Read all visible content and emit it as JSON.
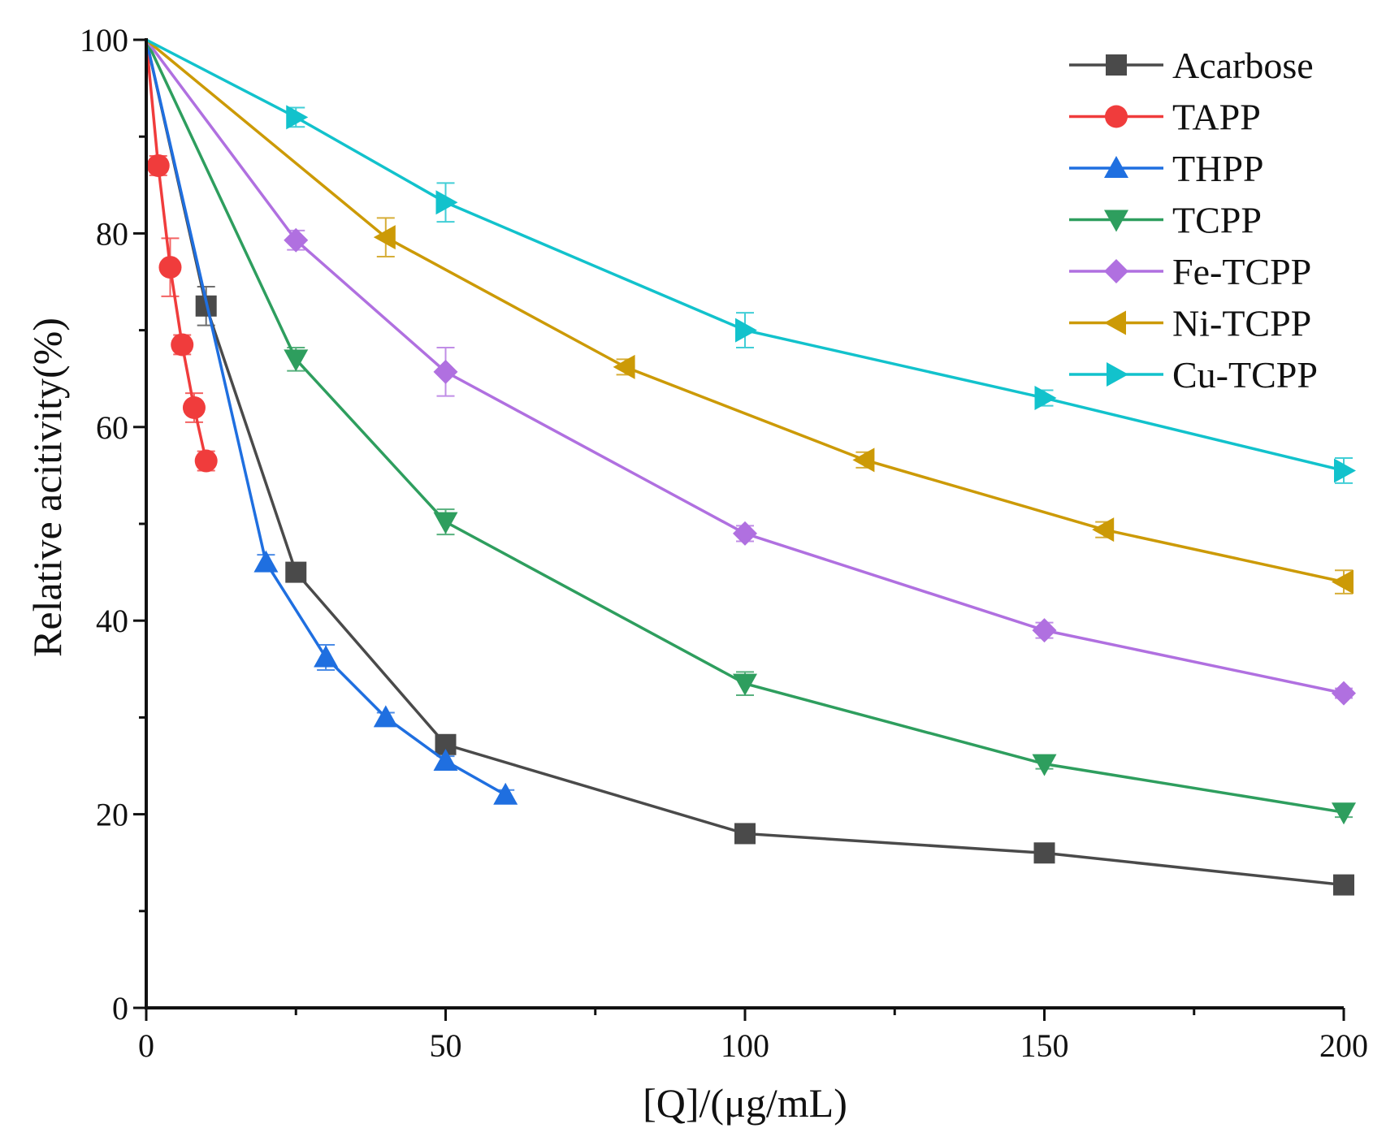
{
  "chart_data": {
    "type": "line",
    "title": "",
    "xlabel": "[Q]/(μg/mL)",
    "ylabel": "Relative acitivity(%)",
    "xlim": [
      0,
      200
    ],
    "ylim": [
      0,
      100
    ],
    "xticks": [
      0,
      50,
      100,
      150,
      200
    ],
    "yticks": [
      0,
      20,
      40,
      60,
      80,
      100
    ],
    "xticks_minor": [
      25,
      75,
      125,
      175
    ],
    "yticks_minor": [
      10,
      30,
      50,
      70,
      90
    ],
    "grid": false,
    "legend_position": "top-right",
    "series": [
      {
        "name": "Acarbose",
        "color": "#4a4a4a",
        "marker": "square",
        "x": [
          0,
          10,
          25,
          50,
          100,
          150,
          200
        ],
        "y": [
          100,
          72.5,
          45,
          27.2,
          18,
          16,
          12.7
        ],
        "err": [
          0,
          2,
          0.8,
          0.6,
          0.5,
          0.5,
          0.5
        ]
      },
      {
        "name": "TAPP",
        "color": "#f03c3c",
        "marker": "circle",
        "x": [
          0,
          2,
          4,
          6,
          8,
          10
        ],
        "y": [
          100,
          87,
          76.5,
          68.5,
          62,
          56.5
        ],
        "err": [
          0,
          1,
          3,
          1,
          1.5,
          1
        ]
      },
      {
        "name": "THPP",
        "color": "#1f6fe0",
        "marker": "triangle-up",
        "x": [
          0,
          20,
          30,
          40,
          50,
          60
        ],
        "y": [
          100,
          46,
          36.2,
          30,
          25.5,
          22
        ],
        "err": [
          0,
          0.8,
          1.3,
          0.5,
          0.5,
          0.5
        ]
      },
      {
        "name": "TCPP",
        "color": "#2e9e5e",
        "marker": "triangle-down",
        "x": [
          0,
          25,
          50,
          100,
          150,
          200
        ],
        "y": [
          100,
          67,
          50.2,
          33.5,
          25.2,
          20.2
        ],
        "err": [
          0,
          1.2,
          1.3,
          1.2,
          0.5,
          0.5
        ]
      },
      {
        "name": "Fe-TCPP",
        "color": "#b070e0",
        "marker": "diamond",
        "x": [
          0,
          25,
          50,
          100,
          150,
          200
        ],
        "y": [
          100,
          79.3,
          65.7,
          49,
          39,
          32.5
        ],
        "err": [
          0,
          1,
          2.5,
          0.8,
          0.8,
          0.5
        ]
      },
      {
        "name": "Ni-TCPP",
        "color": "#cc9a06",
        "marker": "triangle-left",
        "x": [
          0,
          40,
          80,
          120,
          160,
          200
        ],
        "y": [
          100,
          79.6,
          66.2,
          56.6,
          49.4,
          44
        ],
        "err": [
          0,
          2,
          0.8,
          0.8,
          0.8,
          1.2
        ]
      },
      {
        "name": "Cu-TCPP",
        "color": "#12c2cc",
        "marker": "triangle-right",
        "x": [
          0,
          25,
          50,
          100,
          150,
          200
        ],
        "y": [
          100,
          92,
          83.2,
          70,
          63,
          55.5
        ],
        "err": [
          0,
          1,
          2,
          1.8,
          0.8,
          1.3
        ]
      }
    ]
  }
}
